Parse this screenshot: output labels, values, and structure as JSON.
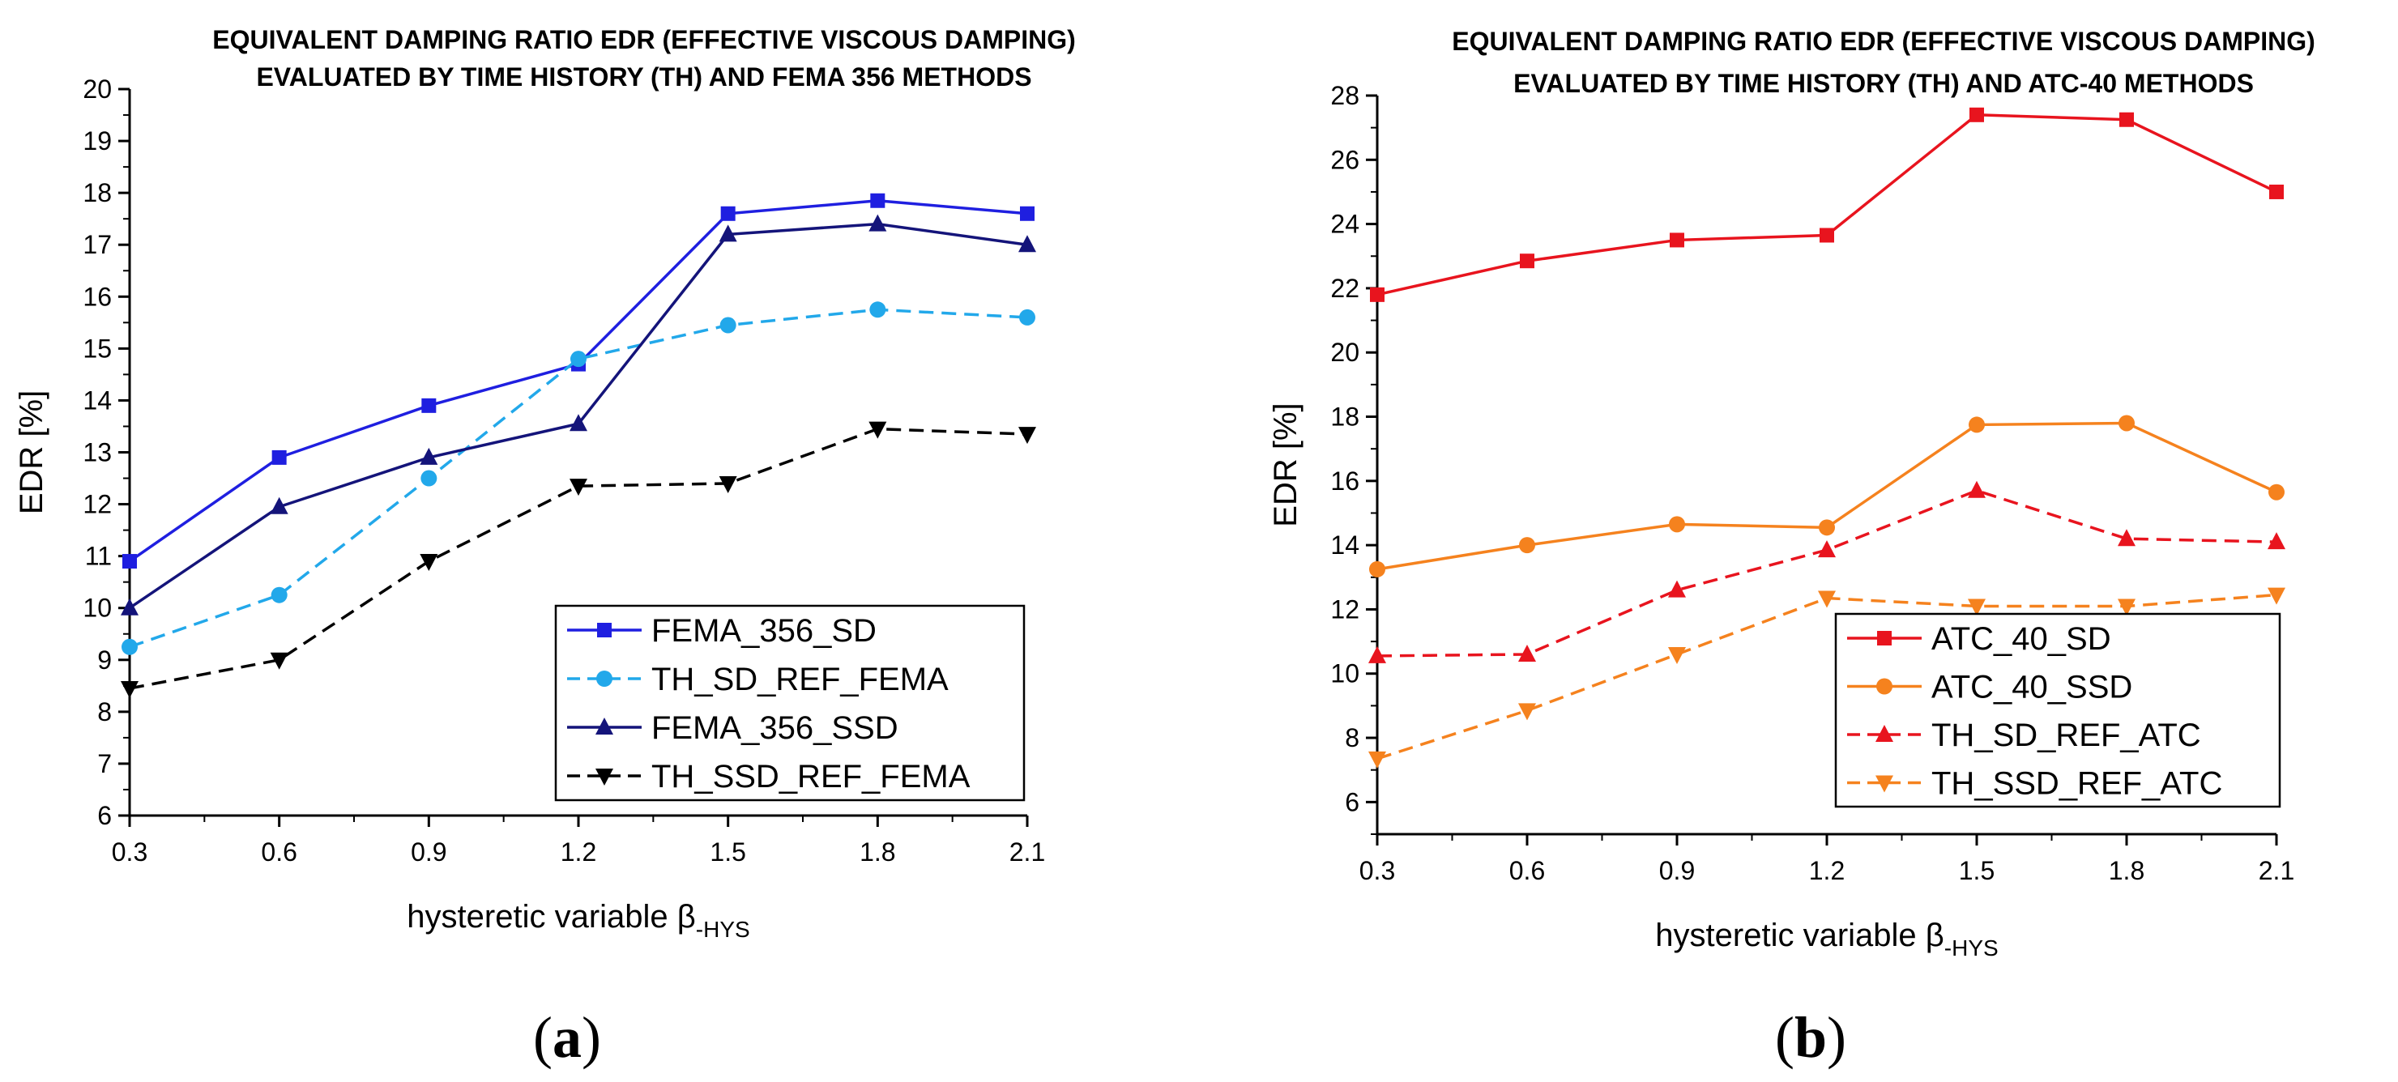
{
  "chart_data": [
    {
      "type": "line",
      "title_lines": [
        "EQUIVALENT DAMPING RATIO EDR  (EFFECTIVE VISCOUS DAMPING)",
        "EVALUATED BY TIME HISTORY  (TH) AND FEMA 356 METHODS"
      ],
      "xlabel": "hysteretic variable β",
      "xlabel_sub": "-HYS",
      "ylabel": "EDR [%]",
      "x": [
        0.3,
        0.6,
        0.9,
        1.2,
        1.5,
        1.8,
        2.1
      ],
      "x_tick_labels": [
        "0.3",
        "0.6",
        "0.9",
        "1.2",
        "1.5",
        "1.8",
        "2.1"
      ],
      "xlim": [
        0.3,
        2.1
      ],
      "ylim": [
        6,
        20
      ],
      "y_ticks": [
        6,
        7,
        8,
        9,
        10,
        11,
        12,
        13,
        14,
        15,
        16,
        17,
        18,
        19,
        20
      ],
      "legend_position": "lower-right",
      "series": [
        {
          "name": "FEMA_356_SD",
          "values": [
            10.9,
            12.9,
            13.9,
            14.7,
            17.6,
            17.85,
            17.6
          ],
          "color": "#1f1fe0",
          "dash": "solid",
          "marker": "square"
        },
        {
          "name": "TH_SD_REF_FEMA",
          "values": [
            9.25,
            10.25,
            12.5,
            14.8,
            15.45,
            15.75,
            15.6
          ],
          "color": "#22a8ea",
          "dash": "dashed",
          "marker": "circle"
        },
        {
          "name": "FEMA_356_SSD",
          "values": [
            10.0,
            11.95,
            12.9,
            13.55,
            17.2,
            17.4,
            17.0
          ],
          "color": "#14147a",
          "dash": "solid",
          "marker": "triangle-up"
        },
        {
          "name": "TH_SSD_REF_FEMA",
          "values": [
            8.45,
            9.0,
            10.9,
            12.35,
            12.4,
            13.45,
            13.35
          ],
          "color": "#000000",
          "dash": "dashed",
          "marker": "triangle-down"
        }
      ],
      "caption_letter": "a"
    },
    {
      "type": "line",
      "title_lines": [
        "EQUIVALENT DAMPING RATIO EDR (EFFECTIVE VISCOUS DAMPING)",
        "EVALUATED BY TIME HISTORY (TH) AND ATC-40  METHODS"
      ],
      "xlabel": "hysteretic variable β",
      "xlabel_sub": "-HYS",
      "ylabel": "EDR [%]",
      "x": [
        0.3,
        0.6,
        0.9,
        1.2,
        1.5,
        1.8,
        2.1
      ],
      "x_tick_labels": [
        "0.3",
        "0.6",
        "0.9",
        "1.2",
        "1.5",
        "1.8",
        "2.1"
      ],
      "xlim": [
        0.3,
        2.1
      ],
      "ylim": [
        5,
        28
      ],
      "y_ticks": [
        6,
        8,
        10,
        12,
        14,
        16,
        18,
        20,
        22,
        24,
        26,
        28
      ],
      "legend_position": "lower-right",
      "series": [
        {
          "name": "ATC_40_SD",
          "values": [
            21.8,
            22.85,
            23.5,
            23.65,
            27.4,
            27.25,
            25.0
          ],
          "color": "#e8141e",
          "dash": "solid",
          "marker": "square"
        },
        {
          "name": "ATC_40_SSD",
          "values": [
            13.25,
            14.0,
            14.65,
            14.55,
            17.75,
            17.8,
            15.65
          ],
          "color": "#f5821e",
          "dash": "solid",
          "marker": "circle"
        },
        {
          "name": "TH_SD_REF_ATC",
          "values": [
            10.55,
            10.6,
            12.6,
            13.85,
            15.7,
            14.2,
            14.1
          ],
          "color": "#e8141e",
          "dash": "dashed",
          "marker": "triangle-up"
        },
        {
          "name": "TH_SSD_REF_ATC",
          "values": [
            7.35,
            8.85,
            10.6,
            12.35,
            12.1,
            12.1,
            12.45
          ],
          "color": "#f5821e",
          "dash": "dashed",
          "marker": "triangle-down"
        }
      ],
      "caption_letter": "b"
    }
  ]
}
